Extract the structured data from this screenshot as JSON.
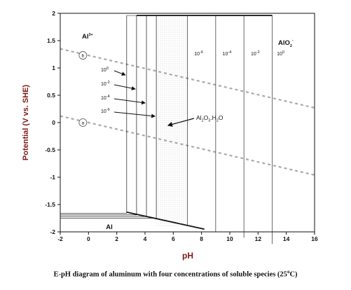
{
  "chart_data": {
    "type": "line",
    "xlabel": "pH",
    "ylabel": "Potential (V vs. SHE)",
    "xlim": [
      -2,
      16
    ],
    "ylim": [
      -2,
      2
    ],
    "x_ticks": [
      -2,
      0,
      2,
      4,
      6,
      8,
      10,
      12,
      14,
      16
    ],
    "y_ticks": [
      2,
      1.5,
      1,
      0.5,
      0,
      -0.5,
      -1,
      -1.5,
      -2
    ],
    "x_tick_labels": [
      "-2",
      "0",
      "2",
      "4",
      "6",
      "8",
      "10",
      "12",
      "14",
      "16"
    ],
    "y_tick_labels": [
      "2",
      "1.5",
      "1",
      "0.5",
      "0",
      "-0.5",
      "-1",
      "-1.5",
      "-2"
    ],
    "grid": false,
    "water_lines": [
      {
        "label": "b",
        "points": [
          [
            -2,
            1.35
          ],
          [
            16,
            0.27
          ]
        ]
      },
      {
        "label": "a",
        "points": [
          [
            -2,
            0.12
          ],
          [
            16,
            -0.96
          ]
        ]
      }
    ],
    "al3_oxide_boundaries": [
      {
        "log_concentration": 0,
        "ph": 2.7
      },
      {
        "log_concentration": -2,
        "ph": 3.4
      },
      {
        "log_concentration": -4,
        "ph": 4.1
      },
      {
        "log_concentration": -6,
        "ph": 4.8
      }
    ],
    "oxide_alo2_boundaries": [
      {
        "log_concentration": -6,
        "ph": 7.0
      },
      {
        "log_concentration": -4,
        "ph": 9.0
      },
      {
        "log_concentration": -2,
        "ph": 11.0
      },
      {
        "log_concentration": 0,
        "ph": 13.0
      }
    ],
    "al_horizontal_lines": [
      {
        "log_concentration": 0,
        "potential": -1.66,
        "x_end": 2.7
      },
      {
        "log_concentration": -2,
        "potential": -1.69,
        "x_end": 3.4
      },
      {
        "log_concentration": -4,
        "potential": -1.72,
        "x_end": 4.1
      },
      {
        "log_concentration": -6,
        "potential": -1.75,
        "x_end": 4.8
      }
    ],
    "al_oxide_line": {
      "points": [
        [
          2.7,
          -1.64
        ],
        [
          8.2,
          -1.95
        ]
      ]
    },
    "top_line": {
      "points": [
        [
          3.4,
          1.96
        ],
        [
          13.0,
          1.96
        ]
      ]
    },
    "hatched_region": {
      "ph_range": [
        4.8,
        7.0
      ]
    },
    "species_labels": {
      "al3": {
        "base": "Al",
        "sup": "3+"
      },
      "alo2": {
        "base": "AlO",
        "sub": "2",
        "sup": "-"
      },
      "al": "Al",
      "oxide": {
        "p1": "Al",
        "s1": "2",
        "p2": "O",
        "s2": "3",
        "p3": ".H",
        "s3": "2",
        "p4": "O"
      }
    },
    "left_conc_labels": [
      {
        "base": "10",
        "exp": "0"
      },
      {
        "base": "10",
        "exp": "-2"
      },
      {
        "base": "10",
        "exp": "-4"
      },
      {
        "base": "10",
        "exp": "-6"
      }
    ],
    "right_conc_labels": [
      {
        "base": "10",
        "exp": "-6"
      },
      {
        "base": "10",
        "exp": "-4"
      },
      {
        "base": "10",
        "exp": "-2"
      },
      {
        "base": "10",
        "exp": "0"
      }
    ]
  },
  "caption": {
    "prefix": "E-pH diagram of aluminum with four concentrations of soluble species (25",
    "degree": "o",
    "suffix": "C)"
  }
}
